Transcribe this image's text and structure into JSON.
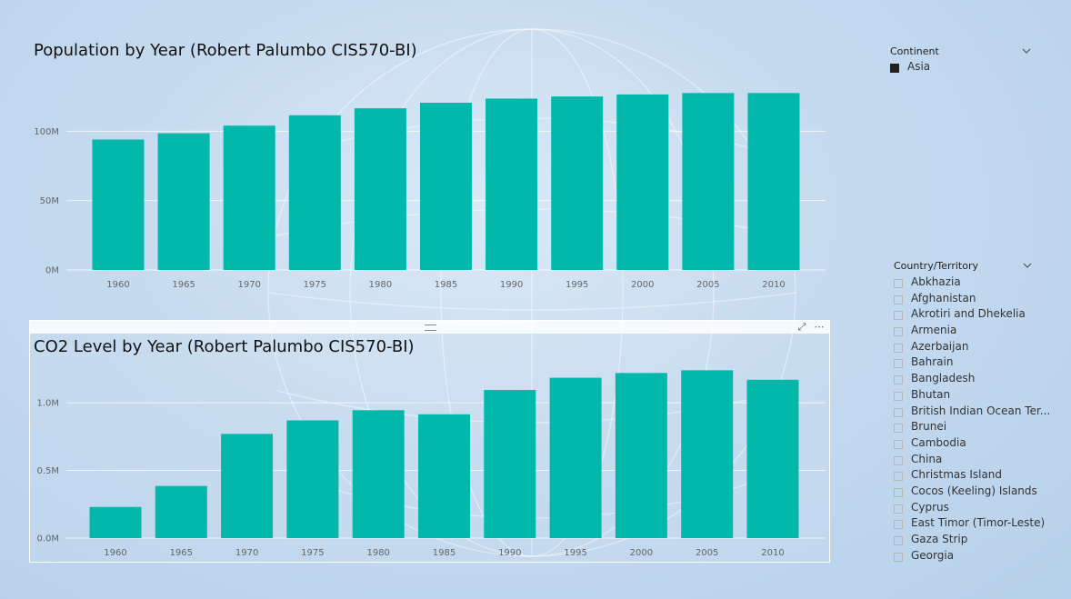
{
  "slicers": {
    "continent": {
      "title": "Continent",
      "items": [
        {
          "label": "Asia",
          "selected": true
        }
      ]
    },
    "country": {
      "title": "Country/Territory",
      "items": [
        "Abkhazia",
        "Afghanistan",
        "Akrotiri and Dhekelia",
        "Armenia",
        "Azerbaijan",
        "Bahrain",
        "Bangladesh",
        "Bhutan",
        "British Indian Ocean Ter...",
        "Brunei",
        "Cambodia",
        "China",
        "Christmas Island",
        "Cocos (Keeling) Islands",
        "Cyprus",
        "East Timor (Timor-Leste)",
        "Gaza Strip",
        "Georgia"
      ]
    }
  },
  "chart_data": [
    {
      "type": "bar",
      "title": "Population by Year (Robert Palumbo CIS570-BI)",
      "categories": [
        "1960",
        "1965",
        "1970",
        "1975",
        "1980",
        "1985",
        "1990",
        "1995",
        "2000",
        "2005",
        "2010"
      ],
      "values": [
        94000000,
        98500000,
        104000000,
        111500000,
        116500000,
        120500000,
        123500000,
        125000000,
        126500000,
        127500000,
        127500000
      ],
      "yticks": [
        {
          "v": 0,
          "label": "0M"
        },
        {
          "v": 50000000,
          "label": "50M"
        },
        {
          "v": 100000000,
          "label": "100M"
        }
      ],
      "ylim": [
        0,
        150000000
      ],
      "color": "#01b8aa",
      "grid": true
    },
    {
      "type": "bar",
      "title": "CO2 Level by Year (Robert Palumbo CIS570-BI)",
      "categories": [
        "1960",
        "1965",
        "1970",
        "1975",
        "1980",
        "1985",
        "1990",
        "1995",
        "2000",
        "2005",
        "2010"
      ],
      "values": [
        230000,
        385000,
        770000,
        870000,
        945000,
        915000,
        1095000,
        1185000,
        1220000,
        1240000,
        1170000
      ],
      "yticks": [
        {
          "v": 0,
          "label": "0.0M"
        },
        {
          "v": 500000,
          "label": "0.5M"
        },
        {
          "v": 1000000,
          "label": "1.0M"
        }
      ],
      "ylim": [
        0,
        1350000
      ],
      "color": "#01b8aa",
      "grid": true
    }
  ]
}
